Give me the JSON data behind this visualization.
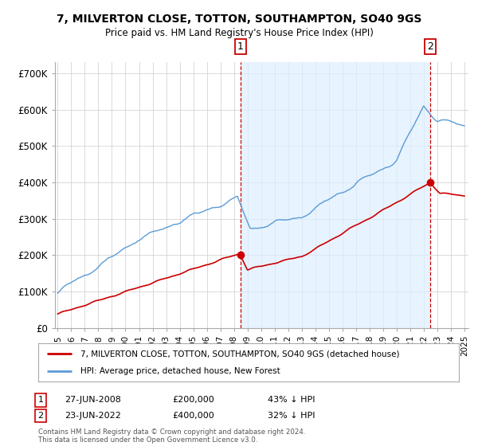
{
  "title": "7, MILVERTON CLOSE, TOTTON, SOUTHAMPTON, SO40 9GS",
  "subtitle": "Price paid vs. HM Land Registry's House Price Index (HPI)",
  "ylabel_ticks": [
    "£0",
    "£100K",
    "£200K",
    "£300K",
    "£400K",
    "£500K",
    "£600K",
    "£700K"
  ],
  "ytick_vals": [
    0,
    100000,
    200000,
    300000,
    400000,
    500000,
    600000,
    700000
  ],
  "ylim": [
    0,
    730000
  ],
  "xlim_start": 1994.8,
  "xlim_end": 2025.3,
  "hpi_color": "#5b9bd5",
  "hpi_fill_color": "#ddeeff",
  "price_color": "#cc0000",
  "transaction1_date": 2008.49,
  "transaction1_price": 200000,
  "transaction2_date": 2022.48,
  "transaction2_price": 400000,
  "vline_color": "#cc0000",
  "legend_label1": "7, MILVERTON CLOSE, TOTTON, SOUTHAMPTON, SO40 9GS (detached house)",
  "legend_label2": "HPI: Average price, detached house, New Forest",
  "footer": "Contains HM Land Registry data © Crown copyright and database right 2024.\nThis data is licensed under the Open Government Licence v3.0.",
  "background_color": "#ffffff",
  "grid_color": "#cccccc"
}
